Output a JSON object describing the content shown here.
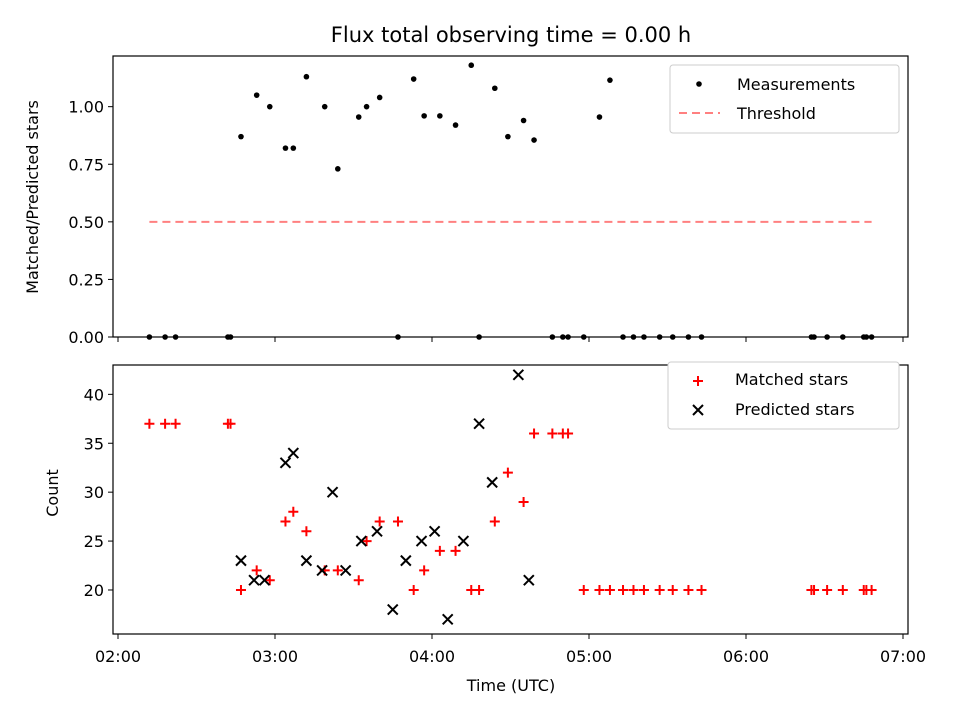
{
  "title": "Flux total observing time = 0.00 h",
  "chart_data": [
    {
      "type": "scatter",
      "panel": "top",
      "title": "Flux total observing time = 0.00 h",
      "xlabel": "",
      "ylabel": "Matched/Predicted stars",
      "ylim": [
        0,
        1.22
      ],
      "yticks": [
        0.0,
        0.25,
        0.5,
        0.75,
        1.0
      ],
      "ytick_labels": [
        "0.00",
        "0.25",
        "0.50",
        "0.75",
        "1.00"
      ],
      "legend_position": "top-right",
      "series": [
        {
          "name": "Measurements",
          "marker": "dot",
          "color": "#000000",
          "x": [
            "02:12",
            "02:18",
            "02:22",
            "02:42",
            "02:43",
            "02:47",
            "02:53",
            "02:58",
            "03:04",
            "03:07",
            "03:12",
            "03:19",
            "03:24",
            "03:32",
            "03:35",
            "03:40",
            "03:47",
            "03:53",
            "03:57",
            "04:03",
            "04:09",
            "04:15",
            "04:18",
            "04:24",
            "04:29",
            "04:35",
            "04:39",
            "04:46",
            "04:50",
            "04:52",
            "04:58",
            "05:04",
            "05:08",
            "05:13",
            "05:17",
            "05:21",
            "05:27",
            "05:32",
            "05:38",
            "05:43",
            "06:25",
            "06:26",
            "06:31",
            "06:37",
            "06:45",
            "06:46",
            "06:48"
          ],
          "y": [
            0,
            0,
            0,
            0,
            0,
            0.87,
            1.05,
            1.0,
            0.82,
            0.82,
            1.13,
            1.0,
            0.73,
            0.955,
            1.0,
            1.04,
            0,
            1.12,
            0.96,
            0.96,
            0.92,
            1.18,
            0,
            1.08,
            0.87,
            0.94,
            0.855,
            0,
            0,
            0,
            0,
            0.955,
            1.115,
            0,
            0,
            0,
            0,
            0,
            0,
            0,
            0,
            0,
            0,
            0,
            0,
            0,
            0
          ]
        },
        {
          "name": "Threshold",
          "style": "dashed",
          "color": "#ff8080",
          "x": [
            "02:12",
            "06:48"
          ],
          "y": [
            0.5,
            0.5
          ]
        }
      ]
    },
    {
      "type": "scatter",
      "panel": "bottom",
      "title": "",
      "xlabel": "Time (UTC)",
      "ylabel": "Count",
      "ylim": [
        15.5,
        43
      ],
      "yticks": [
        20,
        25,
        30,
        35,
        40
      ],
      "xlim": [
        "02:00",
        "07:00"
      ],
      "xticks": [
        "02:00",
        "03:00",
        "04:00",
        "05:00",
        "06:00",
        "07:00"
      ],
      "legend_position": "top-right",
      "series": [
        {
          "name": "Matched stars",
          "marker": "plus",
          "color": "#ff0000",
          "x": [
            "02:12",
            "02:18",
            "02:22",
            "02:42",
            "02:43",
            "02:47",
            "02:53",
            "02:58",
            "03:04",
            "03:07",
            "03:12",
            "03:19",
            "03:24",
            "03:32",
            "03:35",
            "03:40",
            "03:47",
            "03:53",
            "03:57",
            "04:03",
            "04:09",
            "04:15",
            "04:18",
            "04:24",
            "04:29",
            "04:35",
            "04:39",
            "04:46",
            "04:50",
            "04:52",
            "04:58",
            "05:04",
            "05:08",
            "05:13",
            "05:17",
            "05:21",
            "05:27",
            "05:32",
            "05:38",
            "05:43",
            "06:25",
            "06:26",
            "06:31",
            "06:37",
            "06:45",
            "06:46",
            "06:48"
          ],
          "y": [
            37,
            37,
            37,
            37,
            37,
            20,
            22,
            21,
            27,
            28,
            26,
            22,
            22,
            21,
            25,
            27,
            27,
            20,
            22,
            24,
            24,
            20,
            20,
            27,
            32,
            29,
            36,
            36,
            36,
            36,
            20,
            20,
            20,
            20,
            20,
            20,
            20,
            20,
            20,
            20,
            20,
            20,
            20,
            20,
            20,
            20,
            20
          ]
        },
        {
          "name": "Predicted stars",
          "marker": "x",
          "color": "#000000",
          "x": [
            "02:47",
            "02:52",
            "02:56",
            "03:04",
            "03:07",
            "03:12",
            "03:18",
            "03:22",
            "03:27",
            "03:33",
            "03:39",
            "03:45",
            "03:50",
            "03:56",
            "04:01",
            "04:06",
            "04:12",
            "04:18",
            "04:23",
            "04:33",
            "04:37"
          ],
          "y": [
            23,
            21,
            21,
            33,
            34,
            23,
            22,
            30,
            22,
            25,
            26,
            18,
            23,
            25,
            26,
            17,
            25,
            37,
            31,
            42,
            21
          ]
        }
      ]
    }
  ]
}
